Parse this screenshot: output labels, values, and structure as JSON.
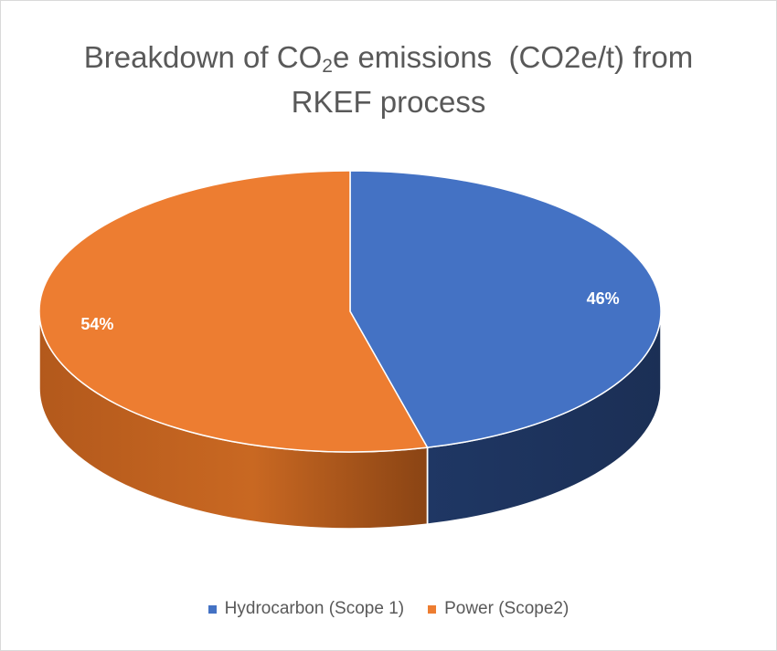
{
  "chart_data": {
    "type": "pie",
    "title_parts": {
      "before_sub": "Breakdown of CO",
      "sub": "2",
      "after_sub": "e emissions  (CO2e/t) from",
      "line2": "RKEF process"
    },
    "slices": [
      {
        "name": "Hydrocarbon (Scope 1)",
        "value": 46,
        "label": "46%",
        "color": "#4472C4"
      },
      {
        "name": "Power (Scope2)",
        "value": 54,
        "label": "54%",
        "color": "#ED7D31"
      }
    ],
    "start_angle_deg": 90,
    "direction": "clockwise",
    "style_3d": true,
    "legend_position": "bottom"
  }
}
